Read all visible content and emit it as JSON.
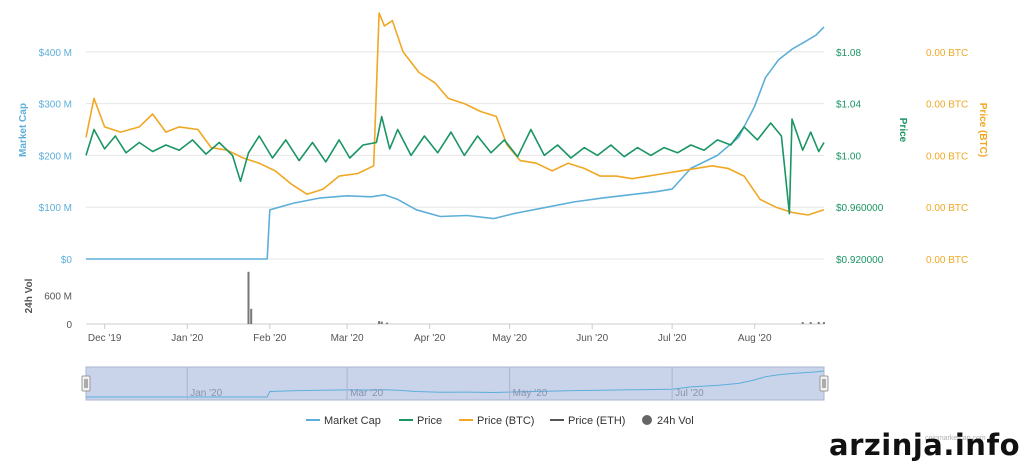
{
  "watermark": "arzinja.info",
  "credits": "coinmarketcap.com",
  "chart_data": {
    "type": "line",
    "x_range": [
      "2019-11-24",
      "2020-08-27"
    ],
    "x_ticks": [
      {
        "date": "2019-12-01",
        "label": "Dec '19"
      },
      {
        "date": "2020-01-01",
        "label": "Jan '20"
      },
      {
        "date": "2020-02-01",
        "label": "Feb '20"
      },
      {
        "date": "2020-03-01",
        "label": "Mar '20"
      },
      {
        "date": "2020-04-01",
        "label": "Apr '20"
      },
      {
        "date": "2020-05-01",
        "label": "May '20"
      },
      {
        "date": "2020-06-01",
        "label": "Jun '20"
      },
      {
        "date": "2020-07-01",
        "label": "Jul '20"
      },
      {
        "date": "2020-08-01",
        "label": "Aug '20"
      }
    ],
    "axes": {
      "market_cap": {
        "title": "Market Cap",
        "color": "#5dafd9",
        "ticks": [
          {
            "value": 0,
            "label": "$0"
          },
          {
            "value": 100,
            "label": "$100 M"
          },
          {
            "value": 200,
            "label": "$200 M"
          },
          {
            "value": 300,
            "label": "$300 M"
          },
          {
            "value": 400,
            "label": "$400 M"
          }
        ],
        "range": [
          0,
          500
        ]
      },
      "price": {
        "title": "Price",
        "color": "#1a9563",
        "ticks": [
          {
            "value": 0.92,
            "label": "$0.920000"
          },
          {
            "value": 0.96,
            "label": "$0.960000"
          },
          {
            "value": 1.0,
            "label": "$1.00"
          },
          {
            "value": 1.04,
            "label": "$1.04"
          },
          {
            "value": 1.08,
            "label": "$1.08"
          }
        ],
        "range": [
          0.92,
          1.12
        ]
      },
      "price_btc": {
        "title": "Price (BTC)",
        "color": "#f0a824",
        "ticks": [
          {
            "value": 0,
            "label": "0.00 BTC"
          },
          {
            "value": 1,
            "label": "0.00 BTC"
          },
          {
            "value": 2,
            "label": "0.00 BTC"
          },
          {
            "value": 3,
            "label": "0.00 BTC"
          },
          {
            "value": 4,
            "label": "0.00 BTC"
          }
        ],
        "range": [
          0,
          5
        ]
      },
      "volume": {
        "title": "24h Vol",
        "color": "#555555",
        "ticks": [
          {
            "value": 0,
            "label": "0"
          },
          {
            "value": 600,
            "label": "600 M"
          }
        ],
        "range": [
          0,
          1200
        ]
      }
    },
    "series": [
      {
        "name": "Market Cap",
        "axis": "market_cap",
        "color": "#5dafd9",
        "points": [
          [
            "2019-11-24",
            0
          ],
          [
            "2020-01-20",
            0
          ],
          [
            "2020-01-31",
            0
          ],
          [
            "2020-02-01",
            95
          ],
          [
            "2020-02-10",
            108
          ],
          [
            "2020-02-20",
            118
          ],
          [
            "2020-03-01",
            122
          ],
          [
            "2020-03-10",
            120
          ],
          [
            "2020-03-15",
            124
          ],
          [
            "2020-03-20",
            115
          ],
          [
            "2020-03-27",
            95
          ],
          [
            "2020-04-05",
            82
          ],
          [
            "2020-04-15",
            84
          ],
          [
            "2020-04-25",
            78
          ],
          [
            "2020-05-03",
            88
          ],
          [
            "2020-05-15",
            100
          ],
          [
            "2020-05-25",
            110
          ],
          [
            "2020-06-05",
            118
          ],
          [
            "2020-06-15",
            124
          ],
          [
            "2020-06-25",
            130
          ],
          [
            "2020-07-01",
            135
          ],
          [
            "2020-07-08",
            175
          ],
          [
            "2020-07-18",
            200
          ],
          [
            "2020-07-26",
            235
          ],
          [
            "2020-08-01",
            295
          ],
          [
            "2020-08-05",
            350
          ],
          [
            "2020-08-10",
            385
          ],
          [
            "2020-08-15",
            405
          ],
          [
            "2020-08-20",
            420
          ],
          [
            "2020-08-24",
            432
          ],
          [
            "2020-08-27",
            448
          ]
        ]
      },
      {
        "name": "Price",
        "axis": "price",
        "color": "#1a9563",
        "points": [
          [
            "2019-11-24",
            1.0
          ],
          [
            "2019-11-27",
            1.02
          ],
          [
            "2019-12-01",
            1.005
          ],
          [
            "2019-12-05",
            1.015
          ],
          [
            "2019-12-09",
            1.002
          ],
          [
            "2019-12-14",
            1.01
          ],
          [
            "2019-12-19",
            1.003
          ],
          [
            "2019-12-24",
            1.008
          ],
          [
            "2019-12-29",
            1.004
          ],
          [
            "2020-01-03",
            1.012
          ],
          [
            "2020-01-08",
            1.001
          ],
          [
            "2020-01-13",
            1.01
          ],
          [
            "2020-01-18",
            1.0
          ],
          [
            "2020-01-21",
            0.98
          ],
          [
            "2020-01-24",
            1.002
          ],
          [
            "2020-01-28",
            1.015
          ],
          [
            "2020-02-02",
            0.998
          ],
          [
            "2020-02-07",
            1.012
          ],
          [
            "2020-02-12",
            0.996
          ],
          [
            "2020-02-17",
            1.01
          ],
          [
            "2020-02-22",
            0.995
          ],
          [
            "2020-02-27",
            1.012
          ],
          [
            "2020-03-02",
            0.998
          ],
          [
            "2020-03-07",
            1.008
          ],
          [
            "2020-03-12",
            1.01
          ],
          [
            "2020-03-14",
            1.03
          ],
          [
            "2020-03-17",
            1.005
          ],
          [
            "2020-03-20",
            1.02
          ],
          [
            "2020-03-25",
            1.0
          ],
          [
            "2020-03-30",
            1.015
          ],
          [
            "2020-04-04",
            1.002
          ],
          [
            "2020-04-09",
            1.018
          ],
          [
            "2020-04-14",
            1.0
          ],
          [
            "2020-04-19",
            1.015
          ],
          [
            "2020-04-24",
            1.002
          ],
          [
            "2020-04-29",
            1.012
          ],
          [
            "2020-05-04",
            0.999
          ],
          [
            "2020-05-09",
            1.02
          ],
          [
            "2020-05-14",
            1.0
          ],
          [
            "2020-05-19",
            1.008
          ],
          [
            "2020-05-24",
            0.998
          ],
          [
            "2020-05-29",
            1.006
          ],
          [
            "2020-06-03",
            1.0
          ],
          [
            "2020-06-08",
            1.008
          ],
          [
            "2020-06-13",
            0.999
          ],
          [
            "2020-06-18",
            1.006
          ],
          [
            "2020-06-23",
            1.0
          ],
          [
            "2020-06-28",
            1.006
          ],
          [
            "2020-07-03",
            1.002
          ],
          [
            "2020-07-08",
            1.008
          ],
          [
            "2020-07-13",
            1.004
          ],
          [
            "2020-07-18",
            1.012
          ],
          [
            "2020-07-23",
            1.008
          ],
          [
            "2020-07-28",
            1.022
          ],
          [
            "2020-08-02",
            1.012
          ],
          [
            "2020-08-07",
            1.025
          ],
          [
            "2020-08-11",
            1.015
          ],
          [
            "2020-08-14",
            0.955
          ],
          [
            "2020-08-15",
            1.028
          ],
          [
            "2020-08-19",
            1.004
          ],
          [
            "2020-08-22",
            1.018
          ],
          [
            "2020-08-25",
            1.003
          ],
          [
            "2020-08-27",
            1.01
          ]
        ]
      },
      {
        "name": "Price (BTC)",
        "axis": "price_btc",
        "color": "#f0a824",
        "points": [
          [
            "2019-11-24",
            2.35
          ],
          [
            "2019-11-27",
            3.1
          ],
          [
            "2019-12-01",
            2.55
          ],
          [
            "2019-12-07",
            2.45
          ],
          [
            "2019-12-14",
            2.55
          ],
          [
            "2019-12-19",
            2.8
          ],
          [
            "2019-12-24",
            2.45
          ],
          [
            "2019-12-29",
            2.55
          ],
          [
            "2020-01-05",
            2.5
          ],
          [
            "2020-01-10",
            2.15
          ],
          [
            "2020-01-16",
            2.1
          ],
          [
            "2020-01-22",
            1.95
          ],
          [
            "2020-01-28",
            1.85
          ],
          [
            "2020-02-03",
            1.7
          ],
          [
            "2020-02-09",
            1.45
          ],
          [
            "2020-02-15",
            1.25
          ],
          [
            "2020-02-21",
            1.35
          ],
          [
            "2020-02-27",
            1.6
          ],
          [
            "2020-03-05",
            1.65
          ],
          [
            "2020-03-11",
            1.8
          ],
          [
            "2020-03-13",
            4.75
          ],
          [
            "2020-03-15",
            4.5
          ],
          [
            "2020-03-18",
            4.6
          ],
          [
            "2020-03-22",
            4.0
          ],
          [
            "2020-03-28",
            3.6
          ],
          [
            "2020-04-03",
            3.4
          ],
          [
            "2020-04-08",
            3.1
          ],
          [
            "2020-04-14",
            3.0
          ],
          [
            "2020-04-20",
            2.85
          ],
          [
            "2020-04-26",
            2.75
          ],
          [
            "2020-04-30",
            2.2
          ],
          [
            "2020-05-05",
            1.9
          ],
          [
            "2020-05-11",
            1.85
          ],
          [
            "2020-05-17",
            1.7
          ],
          [
            "2020-05-23",
            1.85
          ],
          [
            "2020-05-29",
            1.75
          ],
          [
            "2020-06-04",
            1.6
          ],
          [
            "2020-06-10",
            1.6
          ],
          [
            "2020-06-16",
            1.55
          ],
          [
            "2020-06-22",
            1.6
          ],
          [
            "2020-06-28",
            1.65
          ],
          [
            "2020-07-04",
            1.7
          ],
          [
            "2020-07-10",
            1.75
          ],
          [
            "2020-07-16",
            1.8
          ],
          [
            "2020-07-22",
            1.75
          ],
          [
            "2020-07-28",
            1.6
          ],
          [
            "2020-08-03",
            1.15
          ],
          [
            "2020-08-09",
            1.0
          ],
          [
            "2020-08-15",
            0.9
          ],
          [
            "2020-08-21",
            0.85
          ],
          [
            "2020-08-27",
            0.95
          ]
        ]
      },
      {
        "name": "Price (ETH)",
        "axis": "price",
        "color": "#555555",
        "points": []
      }
    ],
    "volume_bars": [
      [
        "2020-01-24",
        1100
      ],
      [
        "2020-01-25",
        320
      ],
      [
        "2020-03-13",
        60
      ],
      [
        "2020-03-14",
        50
      ],
      [
        "2020-03-16",
        30
      ],
      [
        "2020-08-19",
        40
      ],
      [
        "2020-08-22",
        40
      ],
      [
        "2020-08-25",
        45
      ],
      [
        "2020-08-27",
        40
      ]
    ],
    "navigator": {
      "ticks": [
        {
          "date": "2020-01-01",
          "label": "Jan '20"
        },
        {
          "date": "2020-03-01",
          "label": "Mar '20"
        },
        {
          "date": "2020-05-01",
          "label": "May '20"
        },
        {
          "date": "2020-07-01",
          "label": "Jul '20"
        }
      ]
    },
    "legend": {
      "placement": "bottom",
      "items": [
        {
          "label": "Market Cap",
          "color": "#5dafd9",
          "symbol": "line"
        },
        {
          "label": "Price",
          "color": "#1a9563",
          "symbol": "line"
        },
        {
          "label": "Price (BTC)",
          "color": "#f0a824",
          "symbol": "line"
        },
        {
          "label": "Price (ETH)",
          "color": "#555555",
          "symbol": "line"
        },
        {
          "label": "24h Vol",
          "color": "#666666",
          "symbol": "circle"
        }
      ]
    },
    "grid": true
  }
}
